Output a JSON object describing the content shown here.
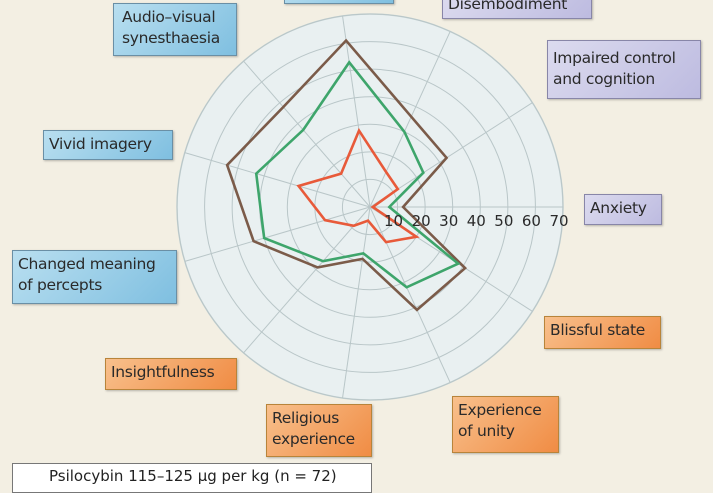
{
  "chart_data": {
    "type": "radar",
    "axes": [
      "Anxiety",
      "Impaired control and cognition",
      "Disembodiment",
      "",
      "Audio–visual synesthaesia",
      "Vivid imagery",
      "Changed meaning of percepts",
      "Insightfulness",
      "Religious experience",
      "Experience of unity",
      "Blissful state"
    ],
    "axis_groups": [
      "purple",
      "purple",
      "purple",
      "blue",
      "blue",
      "blue",
      "blue",
      "orange",
      "orange",
      "orange",
      "orange"
    ],
    "radial_ticks": [
      "10",
      "20",
      "30",
      "40",
      "50",
      "60",
      "70"
    ],
    "rlim": [
      0,
      70
    ],
    "grid": true,
    "series": [
      {
        "color": "#7b5b49",
        "values": [
          12,
          33,
          36,
          61,
          48,
          54,
          44,
          29,
          19,
          41,
          41
        ]
      },
      {
        "color": "#3ea56b",
        "values": [
          7,
          23,
          30,
          53,
          37,
          43,
          40,
          26,
          17,
          32,
          38
        ]
      },
      {
        "color": "#e85a3a",
        "values": [
          1,
          12,
          14,
          28,
          16,
          27,
          17,
          9,
          5,
          14,
          20
        ]
      }
    ],
    "legend": [
      "Psilocybin 115–125 μg per kg (n = 72)"
    ],
    "legend_placement": "bottom-left"
  },
  "colors": {
    "background": "#f3efe3",
    "plot_fill": "#e9f0f1",
    "blue_box": "#8fc6e2",
    "purple_box": "#c6c5e3",
    "orange_box": "#f29a58"
  }
}
